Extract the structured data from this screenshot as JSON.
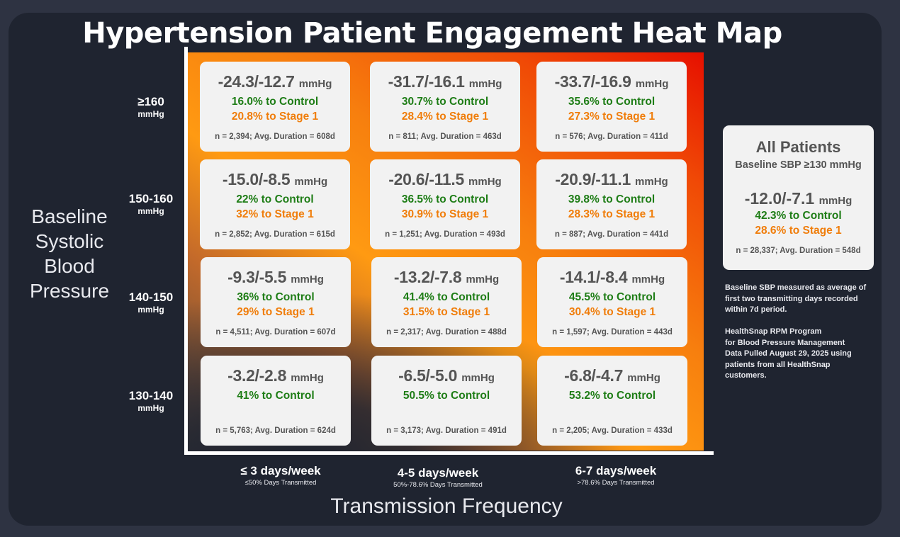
{
  "chart_data": {
    "type": "heatmap",
    "title": "Hypertension Patient Engagement Heat Map",
    "ylabel": "Baseline Systolic Blood Pressure",
    "xlabel": "Transmission Frequency",
    "y_categories": [
      {
        "label": "≥160",
        "unit": "mmHg"
      },
      {
        "label": "150-160",
        "unit": "mmHg"
      },
      {
        "label": "140-150",
        "unit": "mmHg"
      },
      {
        "label": "130-140",
        "unit": "mmHg"
      }
    ],
    "x_categories": [
      {
        "label": "≤ 3 days/week",
        "sub": "≤50% Days Transmitted"
      },
      {
        "label": "4-5 days/week",
        "sub": "50%-78.6% Days Transmitted"
      },
      {
        "label": "6-7 days/week",
        "sub": ">78.6% Days Transmitted"
      }
    ],
    "cells": [
      [
        {
          "reduction": "-24.3/-12.7",
          "unit": "mmHg",
          "control": "16.0% to Control",
          "stage1": "20.8% to Stage 1",
          "stats": "n = 2,394; Avg. Duration = 608d"
        },
        {
          "reduction": "-31.7/-16.1",
          "unit": "mmHg",
          "control": "30.7% to Control",
          "stage1": "28.4% to Stage 1",
          "stats": "n = 811; Avg. Duration = 463d"
        },
        {
          "reduction": "-33.7/-16.9",
          "unit": "mmHg",
          "control": "35.6% to Control",
          "stage1": "27.3% to Stage 1",
          "stats": "n = 576; Avg. Duration = 411d"
        }
      ],
      [
        {
          "reduction": "-15.0/-8.5",
          "unit": "mmHg",
          "control": "22% to Control",
          "stage1": "32% to Stage 1",
          "stats": "n = 2,852; Avg. Duration = 615d"
        },
        {
          "reduction": "-20.6/-11.5",
          "unit": "mmHg",
          "control": "36.5% to Control",
          "stage1": "30.9% to Stage 1",
          "stats": "n = 1,251; Avg. Duration = 493d"
        },
        {
          "reduction": "-20.9/-11.1",
          "unit": "mmHg",
          "control": "39.8% to Control",
          "stage1": "28.3% to Stage 1",
          "stats": "n = 887; Avg. Duration = 441d"
        }
      ],
      [
        {
          "reduction": "-9.3/-5.5",
          "unit": "mmHg",
          "control": "36% to Control",
          "stage1": "29% to Stage 1",
          "stats": "n = 4,511; Avg. Duration = 607d"
        },
        {
          "reduction": "-13.2/-7.8",
          "unit": "mmHg",
          "control": "41.4% to Control",
          "stage1": "31.5% to Stage 1",
          "stats": "n = 2,317; Avg. Duration = 488d"
        },
        {
          "reduction": "-14.1/-8.4",
          "unit": "mmHg",
          "control": "45.5% to Control",
          "stage1": "30.4% to Stage 1",
          "stats": "n = 1,597; Avg. Duration = 443d"
        }
      ],
      [
        {
          "reduction": "-3.2/-2.8",
          "unit": "mmHg",
          "control": "41% to Control",
          "stage1": "",
          "stats": "n = 5,763; Avg. Duration = 624d"
        },
        {
          "reduction": "-6.5/-5.0",
          "unit": "mmHg",
          "control": "50.5% to Control",
          "stage1": "",
          "stats": "n = 3,173; Avg. Duration = 491d"
        },
        {
          "reduction": "-6.8/-4.7",
          "unit": "mmHg",
          "control": "53.2% to Control",
          "stage1": "",
          "stats": "n = 2,205; Avg. Duration = 433d"
        }
      ]
    ],
    "summary": {
      "title": "All Patients",
      "subtitle": "Baseline SBP ≥130 mmHg",
      "reduction": "-12.0/-7.1",
      "unit": "mmHg",
      "control": "42.3% to Control",
      "stage1": "28.6% to Stage 1",
      "stats": "n = 28,337; Avg. Duration = 548d"
    },
    "notes": [
      [
        "Baseline SBP measured as average of",
        "first two transmitting days recorded",
        "within 7d period."
      ],
      [
        "HealthSnap RPM Program",
        "for Blood Pressure Management",
        "Data Pulled August 29, 2025 using",
        "patients from all HealthSnap",
        "customers."
      ]
    ],
    "colors": {
      "control": "#1e7d16",
      "stage1": "#f07d0a",
      "reduction": "#555555",
      "heat_hot": "#e60f00",
      "heat_mid": "#ff9a12",
      "heat_cool": "#1f2430"
    }
  }
}
